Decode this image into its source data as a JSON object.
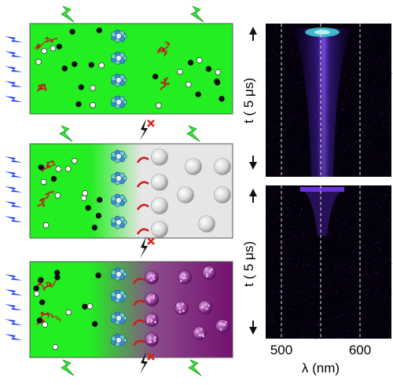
{
  "figure": {
    "panels": [
      {
        "id": "top",
        "background": "#22ee22",
        "fade_to": null
      },
      {
        "id": "middle",
        "background": "#22ee22",
        "fade_to": "#e6e6e6",
        "particle": "white-sphere"
      },
      {
        "id": "bottom",
        "background": "#22ee22",
        "fade_to": "#7a1f80",
        "particle": "purple-nanoparticle"
      }
    ],
    "icons": [
      "blue-excitation-arrows-icon",
      "green-lightning-emission-icon",
      "red-x-quench-icon",
      "red-curved-transfer-arrow-icon"
    ]
  },
  "streak": {
    "top": {
      "ylabel": "t ( 5 μs)"
    },
    "bottom": {
      "ylabel": "t ( 5 μs)"
    },
    "x_ticks": [
      "500",
      "600"
    ],
    "x_tick_values": [
      500,
      600
    ],
    "dashed_lines_nm": [
      500,
      550,
      600
    ],
    "xlabel": "λ (nm)",
    "colors": {
      "background": "#05010c",
      "trace": "#7a3cff",
      "peak": "#3fb8c8"
    }
  }
}
